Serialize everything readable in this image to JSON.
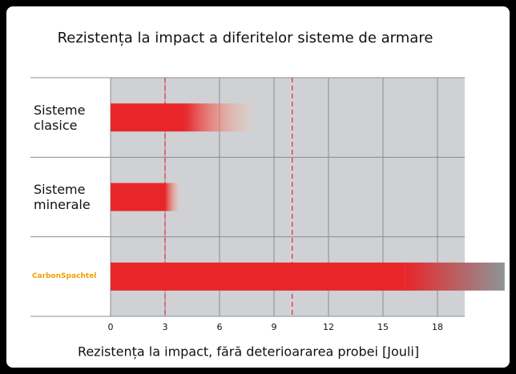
{
  "chart_data": {
    "type": "hbar",
    "title": "Rezistența la impact a diferitelor sisteme de armare",
    "xlabel": "Rezistența la impact, fără deterioararea probei [Jouli]",
    "categories": [
      "Sisteme clasice",
      "Sisteme minerale",
      "CarbonSpachtel"
    ],
    "category_label_colors": [
      "#111111",
      "#111111",
      "#f0a000"
    ],
    "values": [
      4.1,
      3.0,
      16.2
    ],
    "values_max": [
      7.8,
      3.8,
      21.7
    ],
    "color": "#e8262a",
    "fade_colors": [
      "#f6c8a8",
      "#f6c8a8",
      "#8e9596"
    ],
    "xlim": [
      0,
      19.5
    ],
    "xticks": [
      0,
      3,
      6,
      9,
      12,
      15,
      18
    ],
    "reference_lines": [
      3,
      10
    ],
    "grid": true
  }
}
